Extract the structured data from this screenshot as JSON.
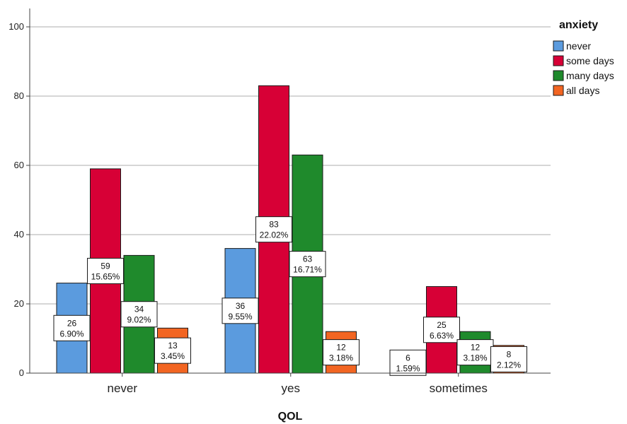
{
  "chart_data": {
    "type": "bar",
    "xlabel": "QOL",
    "ylabel": "",
    "ylim": [
      0,
      105
    ],
    "yticks": [
      0,
      20,
      40,
      60,
      80,
      100
    ],
    "grid": true,
    "categories": [
      "never",
      "yes",
      "sometimes"
    ],
    "legend": {
      "title": "anxiety",
      "position": "top-right"
    },
    "series": [
      {
        "name": "never",
        "color": "#5b9bde",
        "values": [
          26,
          36,
          6
        ],
        "percents": [
          "6.90%",
          "9.55%",
          "1.59%"
        ]
      },
      {
        "name": "some days",
        "color": "#d70036",
        "values": [
          59,
          83,
          25
        ],
        "percents": [
          "15.65%",
          "22.02%",
          "6.63%"
        ]
      },
      {
        "name": "many days",
        "color": "#1f8a2c",
        "values": [
          34,
          63,
          12
        ],
        "percents": [
          "9.02%",
          "16.71%",
          "3.18%"
        ]
      },
      {
        "name": "all days",
        "color": "#f26522",
        "values": [
          13,
          12,
          8
        ],
        "percents": [
          "3.45%",
          "3.18%",
          "2.12%"
        ]
      }
    ]
  }
}
